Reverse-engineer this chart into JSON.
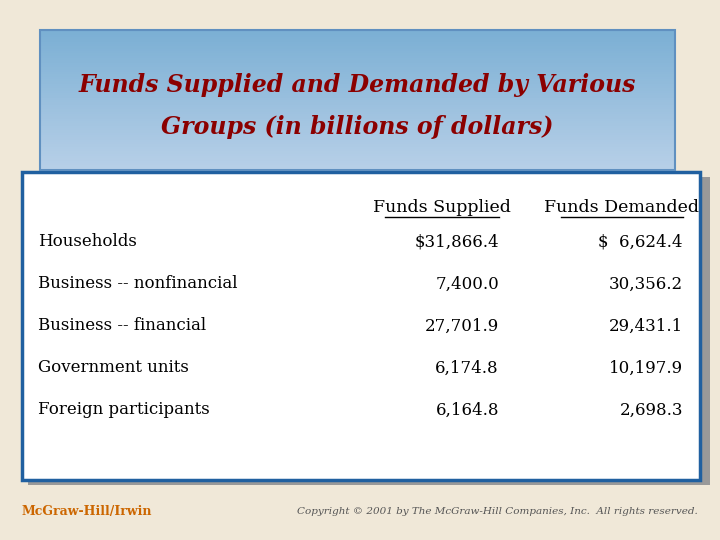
{
  "title_line1": "Funds Supplied and Demanded by Various",
  "title_line2": "Groups (in billions of dollars)",
  "title_color": "#8B0000",
  "page_bg_color": "#f0e8d8",
  "table_bg_color": "#ffffff",
  "table_border_color": "#2060a0",
  "col_headers": [
    "Funds Supplied",
    "Funds Demanded"
  ],
  "row_labels": [
    "Households",
    "Business -- nonfinancial",
    "Business -- financial",
    "Government units",
    "Foreign participants"
  ],
  "funds_supplied": [
    "$31,866.4",
    "7,400.0",
    "27,701.9",
    "6,174.8",
    "6,164.8"
  ],
  "funds_demanded": [
    "$  6,624.4",
    "30,356.2",
    "29,431.1",
    "10,197.9",
    "2,698.3"
  ],
  "footer_left": "McGraw-Hill/Irwin",
  "footer_right": "Copyright © 2001 by The McGraw-Hill Companies, Inc.  All rights reserved.",
  "footer_left_color": "#cc6600",
  "footer_right_color": "#555555"
}
